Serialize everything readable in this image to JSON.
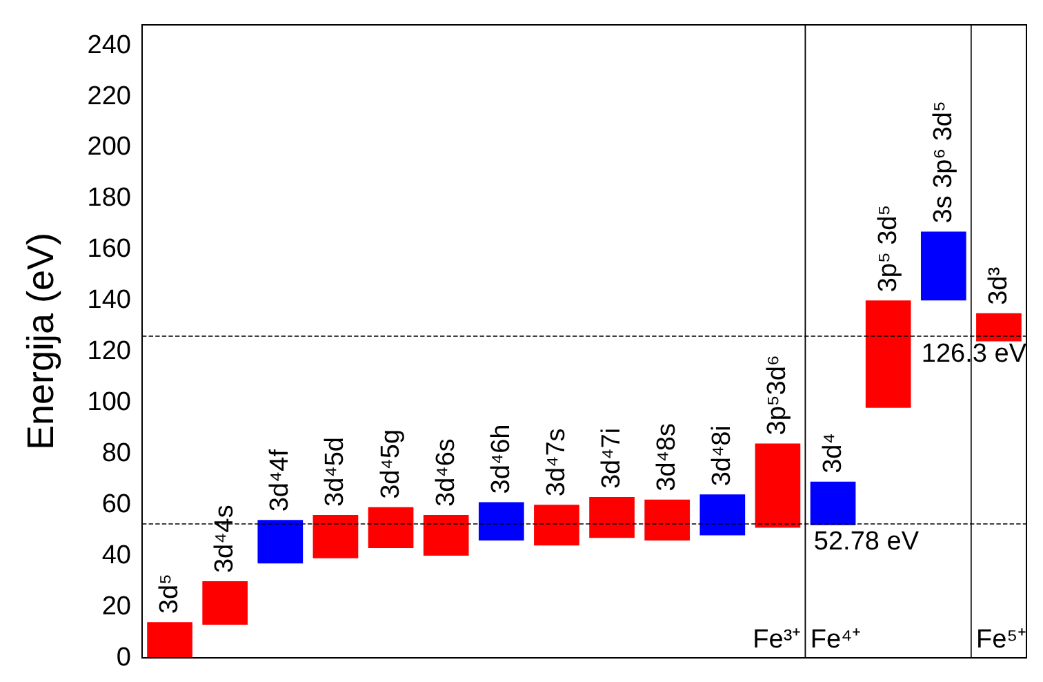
{
  "chart_data": {
    "type": "bar",
    "ylabel": "Energija (eV)",
    "categories": [
      "3d⁵",
      "3d⁴4s",
      "3d⁴4f",
      "3d⁴5d",
      "3d⁴5g",
      "3d⁴6s",
      "3d⁴6h",
      "3d⁴7s",
      "3d⁴7i",
      "3d⁴8s",
      "3d⁴8i",
      "3p⁵3d⁶",
      "3d⁴",
      "3p⁵ 3d⁵",
      "3s 3p⁶ 3d⁵",
      "3d³"
    ],
    "base": [
      0,
      13,
      37,
      39,
      43,
      40,
      46,
      44,
      47,
      46,
      48,
      51,
      52,
      98,
      140,
      124
    ],
    "values": [
      14,
      17,
      17,
      17,
      16,
      16,
      15,
      16,
      16,
      16,
      16,
      33,
      17,
      42,
      27,
      11
    ],
    "colors": [
      "#ff0000",
      "#ff0000",
      "#0000ff",
      "#ff0000",
      "#ff0000",
      "#ff0000",
      "#0000ff",
      "#ff0000",
      "#ff0000",
      "#ff0000",
      "#0000ff",
      "#ff0000",
      "#0000ff",
      "#ff0000",
      "#0000ff",
      "#ff0000"
    ],
    "ylim": [
      0,
      248
    ],
    "yticks": [
      0,
      20,
      40,
      60,
      80,
      100,
      120,
      140,
      160,
      180,
      200,
      220,
      240
    ],
    "tick_labels": "y",
    "grid": false,
    "ref_lines": [
      {
        "axis": "y",
        "value": 52.78,
        "label": "52.78 eV",
        "line_style": "dashed"
      },
      {
        "axis": "y",
        "value": 126.3,
        "label": "126.3 eV",
        "line_style": "dashed"
      }
    ],
    "bands": [
      {
        "axis": "x",
        "from": "3d⁵",
        "to": "3p⁵3d⁶",
        "label": "Fe³⁺",
        "color": "#ffffff"
      },
      {
        "axis": "x",
        "from": "3d⁴",
        "to": "3s 3p⁶ 3d⁵",
        "label": "Fe⁴⁺",
        "color": "#ffffff"
      },
      {
        "axis": "x",
        "from": "3d³",
        "to": "3d³",
        "label": "Fe⁵⁺",
        "color": "#ffffff"
      }
    ]
  }
}
